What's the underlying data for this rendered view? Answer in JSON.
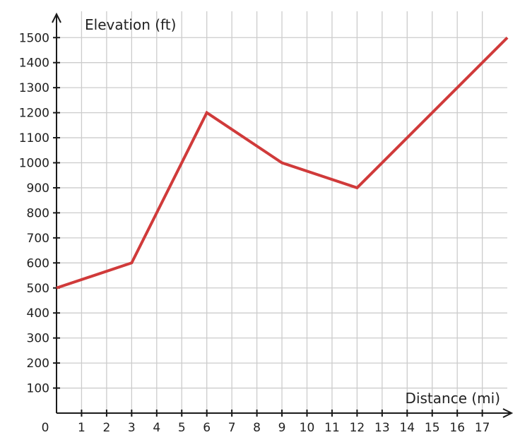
{
  "chart_data": {
    "type": "line",
    "xlabel": "Distance (mi)",
    "ylabel": "Elevation (ft)",
    "xlim": [
      0,
      18
    ],
    "ylim": [
      0,
      1500
    ],
    "x_ticks": [
      1,
      2,
      3,
      4,
      5,
      6,
      7,
      8,
      9,
      10,
      11,
      12,
      13,
      14,
      15,
      16,
      17
    ],
    "y_ticks": [
      100,
      200,
      300,
      400,
      500,
      600,
      700,
      800,
      900,
      1000,
      1100,
      1200,
      1300,
      1400,
      1500
    ],
    "origin_label": "0",
    "grid": true,
    "line_color": "#d03a3a",
    "grid_color": "#cccccc",
    "axis_color": "#1a1a1a",
    "series": [
      {
        "x": [
          0,
          3,
          6,
          9,
          12,
          18
        ],
        "y": [
          500,
          600,
          1200,
          1000,
          900,
          1500
        ]
      }
    ]
  }
}
